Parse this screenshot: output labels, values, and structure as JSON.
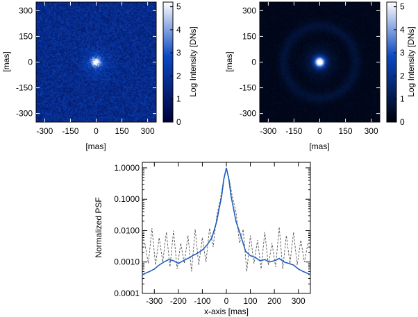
{
  "chart_data": [
    {
      "type": "heatmap",
      "panel": "top-left",
      "xlabel": "[mas]",
      "ylabel": "[mas]",
      "x_ticks": [
        -300,
        -150,
        0,
        150,
        300
      ],
      "y_ticks": [
        -300,
        -150,
        0,
        150,
        300
      ],
      "xlim": [
        -350,
        350
      ],
      "ylim": [
        -350,
        350
      ],
      "colorbar": {
        "label": "Log Intensity [DNs]",
        "ticks": [
          0,
          1,
          2,
          3,
          4,
          5
        ],
        "range": [
          0,
          5.2
        ]
      },
      "colors": {
        "low": "#00003a",
        "mid": "#0b48c2",
        "high": "#ffffff"
      },
      "description_fields": {
        "background_level": 1.7,
        "background_noise": 0.7,
        "core_peak": 4.8,
        "core_radius_mas": 18,
        "halo_radius_mas": 0
      }
    },
    {
      "type": "heatmap",
      "panel": "top-right",
      "xlabel": "[mas]",
      "ylabel": "[mas]",
      "x_ticks": [
        -300,
        -150,
        0,
        150,
        300
      ],
      "y_ticks": [
        -300,
        -150,
        0,
        150,
        300
      ],
      "xlim": [
        -350,
        350
      ],
      "ylim": [
        -350,
        350
      ],
      "colorbar": {
        "label": "Log Intensity [DNs]",
        "ticks": [
          0,
          1,
          2,
          3,
          4,
          5
        ],
        "range": [
          0,
          5.2
        ]
      },
      "colors": {
        "low": "#000008",
        "mid": "#0b48c2",
        "high": "#ffffff"
      },
      "description_fields": {
        "background_level": 0.3,
        "background_noise": 0.15,
        "core_peak": 5.1,
        "core_radius_mas": 22,
        "halo_radius_mas": 210
      }
    },
    {
      "type": "line",
      "panel": "bottom",
      "xlabel": "x-axis [mas]",
      "ylabel": "Normalized PSF",
      "xlim": [
        -350,
        350
      ],
      "ylim": [
        0.0001,
        1.5
      ],
      "yscale": "log",
      "x_ticks": [
        -300,
        -200,
        -100,
        0,
        100,
        200,
        300
      ],
      "y_ticks": [
        "0.0001",
        "0.0010",
        "0.0100",
        "0.1000",
        "1.0000"
      ],
      "y_tick_values": [
        0.0001,
        0.001,
        0.01,
        0.1,
        1.0
      ],
      "grid": false,
      "series": [
        {
          "style": "solid",
          "color": "#1f5fbf",
          "x": [
            -350,
            -320,
            -300,
            -280,
            -260,
            -240,
            -220,
            -200,
            -180,
            -160,
            -140,
            -120,
            -100,
            -80,
            -60,
            -40,
            -30,
            -20,
            -10,
            0,
            10,
            20,
            30,
            40,
            60,
            80,
            100,
            120,
            140,
            160,
            180,
            200,
            220,
            240,
            260,
            280,
            300,
            320,
            350
          ],
          "y": [
            0.0004,
            0.0005,
            0.0006,
            0.0008,
            0.001,
            0.0012,
            0.0011,
            0.0009,
            0.0011,
            0.0013,
            0.0016,
            0.0019,
            0.0024,
            0.0035,
            0.006,
            0.02,
            0.05,
            0.12,
            0.45,
            1.0,
            0.45,
            0.12,
            0.05,
            0.02,
            0.007,
            0.0022,
            0.0016,
            0.0014,
            0.0011,
            0.0012,
            0.001,
            0.0011,
            0.0013,
            0.001,
            0.0009,
            0.0008,
            0.0006,
            0.0005,
            0.0004
          ]
        },
        {
          "style": "dashed",
          "color": "#555555",
          "x": [
            -340,
            -325,
            -310,
            -295,
            -280,
            -265,
            -250,
            -235,
            -220,
            -205,
            -190,
            -175,
            -160,
            -145,
            -130,
            -115,
            -100,
            -85,
            -70,
            -55,
            -40,
            -25,
            -10,
            0,
            10,
            25,
            40,
            55,
            70,
            85,
            100,
            115,
            130,
            145,
            160,
            175,
            190,
            205,
            220,
            235,
            250,
            265,
            280,
            295,
            310,
            325,
            340
          ],
          "y": [
            0.004,
            0.0009,
            0.012,
            0.0008,
            0.006,
            0.001,
            0.009,
            0.0007,
            0.01,
            0.0006,
            0.004,
            0.0009,
            0.007,
            0.0005,
            0.011,
            0.0008,
            0.006,
            0.001,
            0.012,
            0.003,
            0.03,
            0.1,
            0.5,
            1.0,
            0.5,
            0.12,
            0.04,
            0.004,
            0.011,
            0.0005,
            0.007,
            0.0009,
            0.005,
            0.0006,
            0.009,
            0.0008,
            0.004,
            0.0007,
            0.013,
            0.0006,
            0.007,
            0.0009,
            0.009,
            0.0008,
            0.005,
            0.001,
            0.004
          ]
        }
      ]
    }
  ]
}
